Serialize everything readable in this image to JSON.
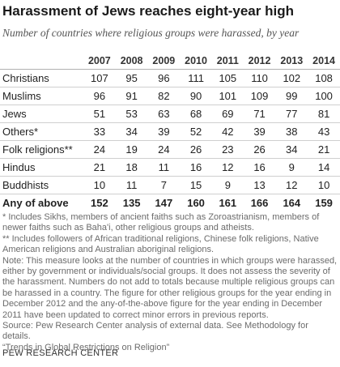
{
  "title": "Harassment of Jews reaches eight-year high",
  "subtitle": "Number of countries where religious groups were harassed, by year",
  "chart_data": {
    "type": "table",
    "columns": [
      "2007",
      "2008",
      "2009",
      "2010",
      "2011",
      "2012",
      "2013",
      "2014"
    ],
    "rows": [
      {
        "label": "Christians",
        "values": [
          107,
          95,
          96,
          111,
          105,
          110,
          102,
          108
        ]
      },
      {
        "label": "Muslims",
        "values": [
          96,
          91,
          82,
          90,
          101,
          109,
          99,
          100
        ]
      },
      {
        "label": "Jews",
        "values": [
          51,
          53,
          63,
          68,
          69,
          71,
          77,
          81
        ]
      },
      {
        "label": "Others*",
        "values": [
          33,
          34,
          39,
          52,
          42,
          39,
          38,
          43
        ]
      },
      {
        "label": "Folk religions**",
        "values": [
          24,
          19,
          24,
          26,
          23,
          26,
          34,
          21
        ]
      },
      {
        "label": "Hindus",
        "values": [
          21,
          18,
          11,
          16,
          12,
          16,
          9,
          14
        ]
      },
      {
        "label": "Buddhists",
        "values": [
          10,
          11,
          7,
          15,
          9,
          13,
          12,
          10
        ]
      }
    ],
    "total": {
      "label": "Any of above",
      "values": [
        152,
        135,
        147,
        160,
        161,
        166,
        164,
        159
      ]
    }
  },
  "notes": {
    "footnote1": "* Includes Sikhs, members of ancient faiths such as Zoroastrianism, members of newer faiths such as Baha'i, other religious groups and atheists.",
    "footnote2": "** Includes followers of African traditional religions, Chinese folk religions, Native American religions and Australian aboriginal religions.",
    "note": "Note: This measure looks at the number of countries in which groups were harassed, either by government or individuals/social groups. It does not assess the severity of the harassment. Numbers do not add to totals because multiple religious groups can be harassed in a country. The figure for other religious groups for the year ending in December 2012 and the any-of-the-above figure for the year ending in December 2011 have been updated to correct minor errors in previous reports.",
    "source1": "Source: Pew Research Center analysis of external data. See Methodology for details.",
    "source2": "“Trends in Global Restrictions on Religion”"
  },
  "footer": "PEW RESEARCH CENTER"
}
